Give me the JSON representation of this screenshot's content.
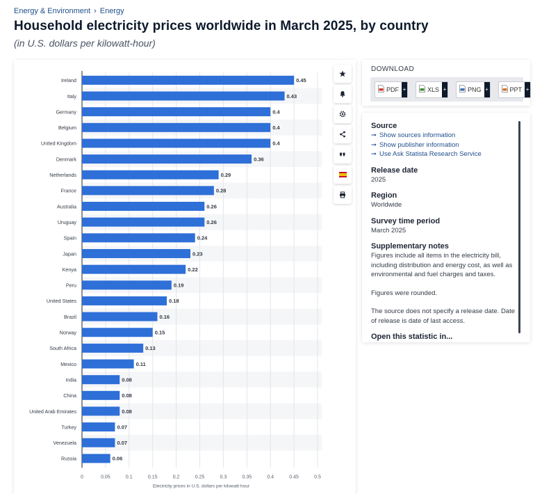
{
  "breadcrumb": {
    "items": [
      "Energy & Environment",
      "Energy"
    ],
    "separator": "›"
  },
  "title": "Household electricity prices worldwide in March 2025, by country",
  "subtitle": "(in U.S. dollars per kilowatt-hour)",
  "toolbar": {
    "icons": [
      "star-icon",
      "bell-icon",
      "gear-icon",
      "share-icon",
      "quote-icon",
      "flag-es-icon",
      "print-icon"
    ]
  },
  "download": {
    "title": "DOWNLOAD",
    "buttons": [
      {
        "label": "PDF",
        "plus": "+",
        "color": "#d23b2b"
      },
      {
        "label": "XLS",
        "plus": "+",
        "color": "#3f8d3a"
      },
      {
        "label": "PNG",
        "plus": "+",
        "color": "#3a6fb0"
      },
      {
        "label": "PPT",
        "plus": "+",
        "color": "#d3702b"
      }
    ]
  },
  "info": {
    "source_heading": "Source",
    "source_links": [
      "Show sources information",
      "Show publisher information",
      "Use Ask Statista Research Service"
    ],
    "link_arrow": "➞",
    "release_heading": "Release date",
    "release_value": "2025",
    "region_heading": "Region",
    "region_value": "Worldwide",
    "period_heading": "Survey time period",
    "period_value": "March 2025",
    "notes_heading": "Supplementary notes",
    "notes_p1": "Figures include all items in the electricity bill, including distribution and energy cost, as well as environmental and fuel charges and taxes.",
    "notes_p2": "Figures were rounded.",
    "notes_p3": "The source does not specify a release date. Date of release is date of last access.",
    "open_heading": "Open this statistic in..."
  },
  "chart_data": {
    "type": "bar",
    "orientation": "horizontal",
    "categories": [
      "Ireland",
      "Italy",
      "Germany",
      "Belgium",
      "United Kingdom",
      "Denmark",
      "Netherlands",
      "France",
      "Australia",
      "Uruguay",
      "Spain",
      "Japan",
      "Kenya",
      "Peru",
      "United States",
      "Brazil",
      "Norway",
      "South Africa",
      "Mexico",
      "India",
      "China",
      "United Arab Emirates",
      "Turkey",
      "Venezuela",
      "Russia"
    ],
    "values": [
      0.45,
      0.43,
      0.4,
      0.4,
      0.4,
      0.36,
      0.29,
      0.28,
      0.26,
      0.26,
      0.24,
      0.23,
      0.22,
      0.19,
      0.18,
      0.16,
      0.15,
      0.13,
      0.11,
      0.08,
      0.08,
      0.08,
      0.07,
      0.07,
      0.06
    ],
    "value_labels": [
      "0.45",
      "0.43",
      "0.4",
      "0.4",
      "0.4",
      "0.36",
      "0.29",
      "0.28",
      "0.26",
      "0.26",
      "0.24",
      "0.23",
      "0.22",
      "0.19",
      "0.18",
      "0.16",
      "0.15",
      "0.13",
      "0.11",
      "0.08",
      "0.08",
      "0.08",
      "0.07",
      "0.07",
      "0.06"
    ],
    "xlabel": "Electricity prices in U.S. dollars per kilowatt-hour",
    "ylabel": "",
    "xlim": [
      0,
      0.5
    ],
    "x_ticks": [
      0,
      0.05,
      0.1,
      0.15,
      0.2,
      0.25,
      0.3,
      0.35,
      0.4,
      0.45,
      0.5
    ],
    "x_tick_labels": [
      "0",
      "0.05",
      "0.1",
      "0.15",
      "0.2",
      "0.25",
      "0.3",
      "0.35",
      "0.4",
      "0.45",
      "0.5"
    ],
    "grid": true,
    "bar_color": "#2e6fd8"
  }
}
